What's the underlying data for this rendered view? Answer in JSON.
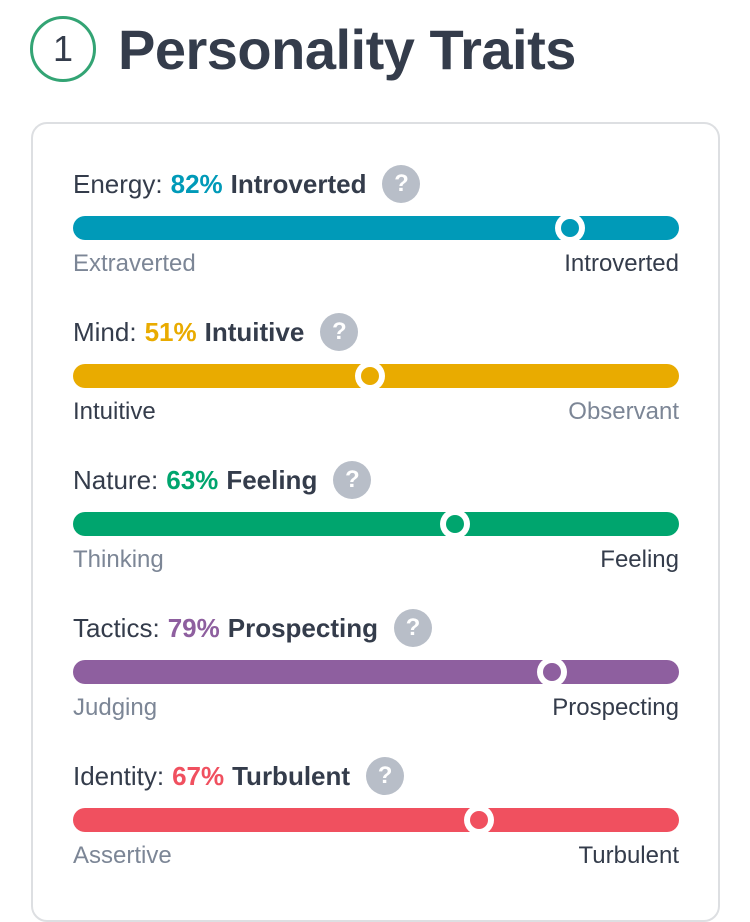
{
  "header": {
    "step": "1",
    "title": "Personality Traits"
  },
  "help_glyph": "?",
  "traits": [
    {
      "label": "Energy:",
      "percent": "82%",
      "name": "Introverted",
      "value": 0.82,
      "color": "#009ab8",
      "left_pole": "Extraverted",
      "right_pole": "Introverted",
      "active": "right"
    },
    {
      "label": "Mind:",
      "percent": "51%",
      "name": "Intuitive",
      "value": 0.49,
      "color": "#e9ab00",
      "left_pole": "Intuitive",
      "right_pole": "Observant",
      "active": "left"
    },
    {
      "label": "Nature:",
      "percent": "63%",
      "name": "Feeling",
      "value": 0.63,
      "color": "#00a56e",
      "left_pole": "Thinking",
      "right_pole": "Feeling",
      "active": "right"
    },
    {
      "label": "Tactics:",
      "percent": "79%",
      "name": "Prospecting",
      "value": 0.79,
      "color": "#8e5f9f",
      "left_pole": "Judging",
      "right_pole": "Prospecting",
      "active": "right"
    },
    {
      "label": "Identity:",
      "percent": "67%",
      "name": "Turbulent",
      "value": 0.67,
      "color": "#f0505f",
      "left_pole": "Assertive",
      "right_pole": "Turbulent",
      "active": "right"
    }
  ]
}
